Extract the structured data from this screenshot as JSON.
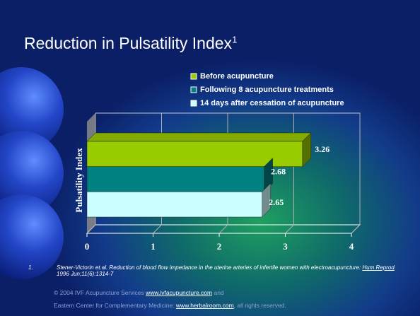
{
  "chart_data": {
    "type": "bar",
    "orientation": "horizontal",
    "title": "Reduction in Pulsatility Index",
    "title_superscript": "1",
    "y_label": "Pulsatility Index",
    "categories": [
      null
    ],
    "series": [
      {
        "name": "Before acupuncture",
        "color": "#99cc00",
        "values": [
          3.26
        ]
      },
      {
        "name": "Following 8 acupuncture treatments",
        "color": "#008080",
        "values": [
          2.68
        ]
      },
      {
        "name": "14 days after cessation of acupuncture",
        "color": "#ccffff",
        "values": [
          2.65
        ]
      }
    ],
    "xlim": [
      0,
      4
    ],
    "xticks": [
      0,
      1,
      2,
      3,
      4
    ],
    "grid": true
  },
  "footnote": {
    "number": "1.",
    "text": "Stener-Victorin et.al. Reduction of blood flow impedance in the uterine arteries of infertile women with electroacupuncture: ",
    "journal": "Hum Reprod",
    "citation": ". 1996 Jun;11(6):1314-7"
  },
  "copyright": {
    "line1": "© 2004 IVF Acupuncture Services",
    "link1": "www.ivfacupuncture.com",
    "after1": "and",
    "line2": "Eastern Center for Complementary Medicine:",
    "link2": "www.herbalroom.com",
    "after2": ", all rights reserved."
  }
}
